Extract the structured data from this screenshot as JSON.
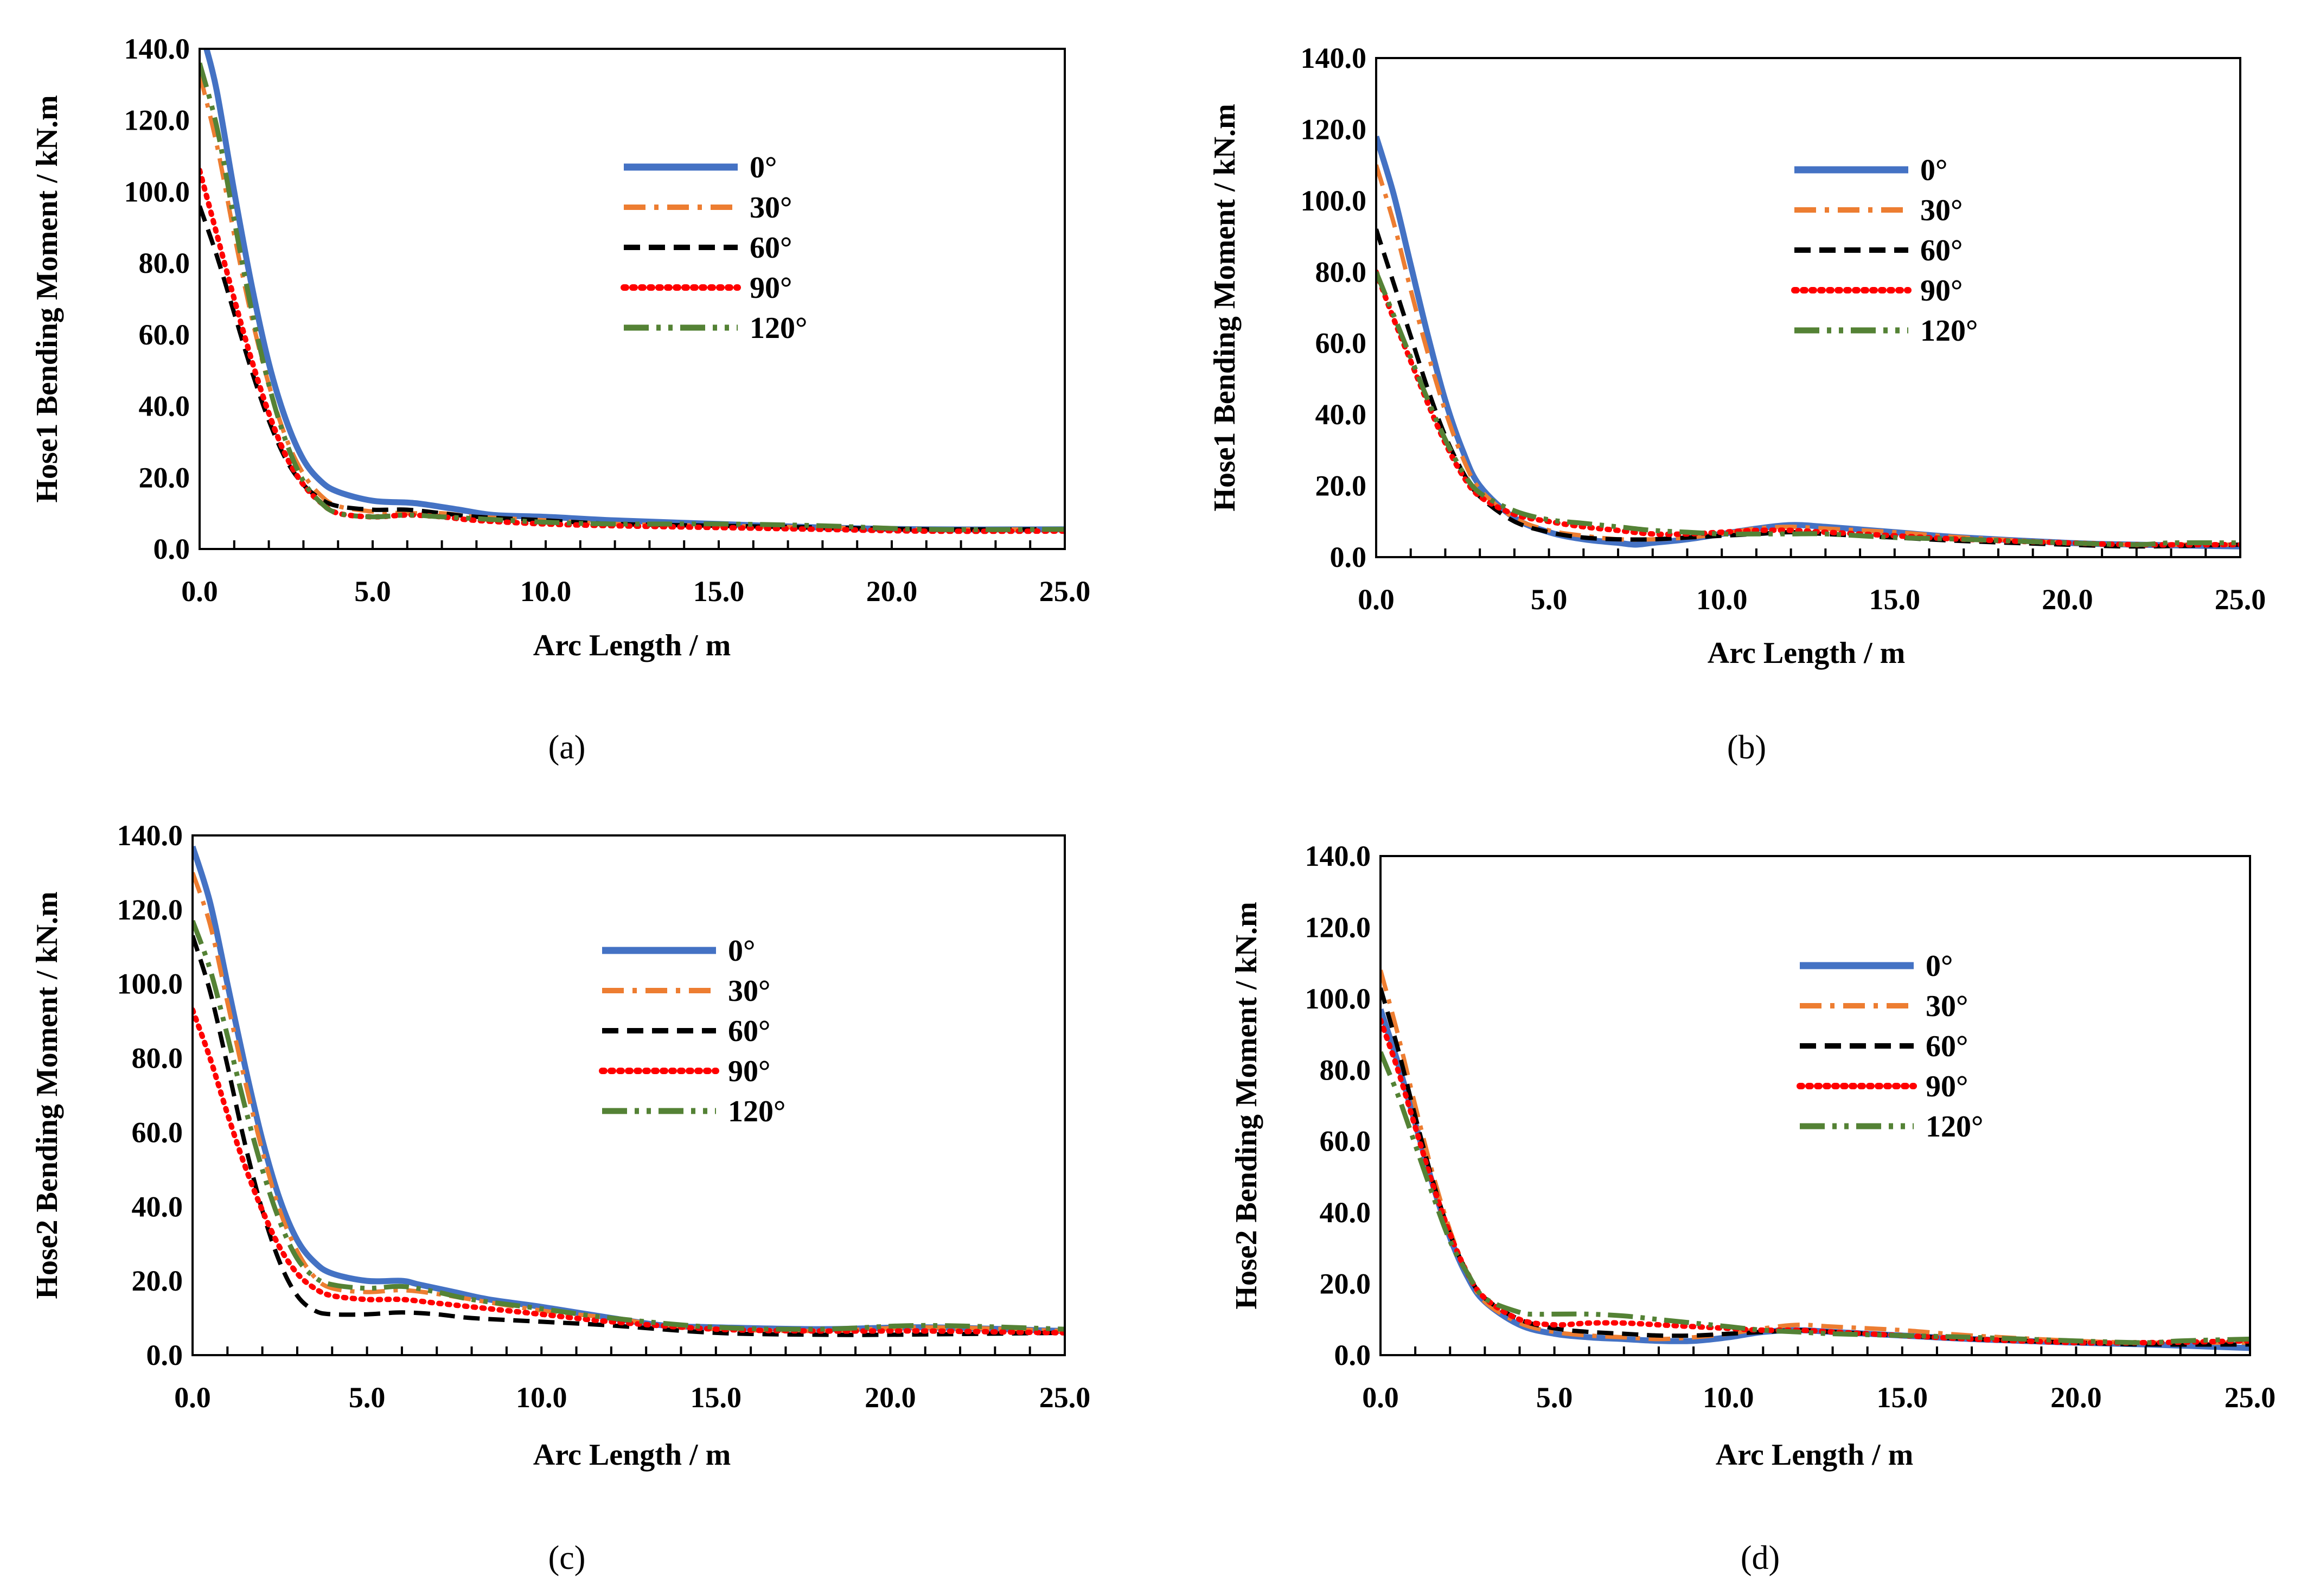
{
  "chart_data": [
    {
      "type": "line",
      "panel_label": "(a)",
      "xlabel": "Arc Length / m",
      "ylabel": "Hose1 Bending Moment / kN.m",
      "xlim": [
        0,
        25
      ],
      "ylim": [
        0,
        140
      ],
      "x_ticks": [
        "0.0",
        "5.0",
        "10.0",
        "15.0",
        "20.0",
        "25.0"
      ],
      "y_ticks": [
        "0.0",
        "20.0",
        "40.0",
        "60.0",
        "80.0",
        "100.0",
        "120.0",
        "140.0"
      ],
      "grid": false,
      "legend_position": "top-right",
      "series": [
        {
          "name": "0°",
          "color": "#4472C4",
          "style": "solid",
          "x": [
            0.2,
            0.5,
            1,
            1.5,
            2,
            2.5,
            3,
            3.5,
            4,
            5,
            6,
            6.5,
            7.5,
            8.5,
            10,
            12,
            15,
            18,
            21,
            25
          ],
          "y": [
            140,
            128,
            100,
            74,
            52,
            36,
            25,
            19,
            16,
            13.5,
            13,
            12.5,
            11,
            9.5,
            9,
            8,
            7,
            6,
            5.5,
            5.5
          ]
        },
        {
          "name": "30°",
          "color": "#ED7D31",
          "style": "dashdot",
          "x": [
            0,
            0.5,
            1,
            1.5,
            2,
            2.5,
            3,
            3.5,
            4,
            5,
            6,
            7,
            8,
            10,
            12,
            15,
            18,
            21,
            25
          ],
          "y": [
            133,
            113,
            88,
            65,
            46,
            31,
            21,
            15,
            12,
            10.5,
            10,
            10,
            9,
            8,
            7,
            6.5,
            6,
            5.5,
            5.5
          ]
        },
        {
          "name": "60°",
          "color": "#000000",
          "style": "dashed",
          "x": [
            0,
            0.5,
            1,
            1.5,
            2,
            2.5,
            3,
            3.5,
            4,
            5,
            6,
            7,
            8,
            10,
            12,
            15,
            18,
            21,
            25
          ],
          "y": [
            96,
            82,
            66,
            50,
            36,
            25,
            18,
            14,
            12,
            11,
            11,
            10,
            9,
            8,
            7,
            6.5,
            6,
            5.5,
            5.5
          ]
        },
        {
          "name": "90°",
          "color": "#FF0000",
          "style": "dotted",
          "x": [
            0,
            0.5,
            1,
            1.5,
            2,
            2.5,
            3,
            3.5,
            4,
            5,
            6,
            7,
            8,
            10,
            12,
            15,
            18,
            21,
            25
          ],
          "y": [
            106,
            88,
            70,
            53,
            38,
            26,
            18,
            13,
            10,
            9,
            9.5,
            9,
            8,
            7,
            6.5,
            6,
            5.5,
            5,
            5
          ]
        },
        {
          "name": "120°",
          "color": "#548235",
          "style": "dashdotdot",
          "x": [
            0,
            0.5,
            1,
            1.5,
            2,
            2.5,
            3,
            3.5,
            4,
            5,
            6,
            7,
            8,
            10,
            12,
            15,
            18,
            21,
            25
          ],
          "y": [
            136,
            118,
            92,
            67,
            46,
            30,
            19,
            13,
            10,
            9,
            9.5,
            9,
            8.5,
            7.5,
            7,
            7,
            6.5,
            5.5,
            5.5
          ]
        }
      ]
    },
    {
      "type": "line",
      "panel_label": "(b)",
      "xlabel": "Arc Length / m",
      "ylabel": "Hose1 Bending Moment / kN.m",
      "xlim": [
        0,
        25
      ],
      "ylim": [
        0,
        140
      ],
      "x_ticks": [
        "0.0",
        "5.0",
        "10.0",
        "15.0",
        "20.0",
        "25.0"
      ],
      "y_ticks": [
        "0.0",
        "20.0",
        "40.0",
        "60.0",
        "80.0",
        "100.0",
        "120.0",
        "140.0"
      ],
      "grid": false,
      "legend_position": "top-right",
      "series": [
        {
          "name": "0°",
          "color": "#4472C4",
          "style": "solid",
          "x": [
            0,
            0.5,
            1,
            1.5,
            2,
            2.5,
            3,
            4,
            5,
            6,
            7,
            7.5,
            8,
            9,
            10,
            11,
            12,
            13,
            15,
            17,
            20,
            22,
            25
          ],
          "y": [
            118,
            102,
            82,
            62,
            44,
            30,
            20,
            11,
            7,
            5,
            4,
            3.5,
            4,
            5,
            6.5,
            8,
            9,
            8.5,
            7,
            5.5,
            4,
            3.5,
            3
          ]
        },
        {
          "name": "30°",
          "color": "#ED7D31",
          "style": "dashdot",
          "x": [
            0,
            0.5,
            1,
            1.5,
            2,
            2.5,
            3,
            4,
            5,
            6,
            7,
            8,
            9,
            10,
            11,
            12,
            13,
            15,
            17,
            20,
            22,
            25
          ],
          "y": [
            110,
            94,
            75,
            57,
            41,
            28,
            19,
            11,
            7.5,
            6,
            5,
            5,
            5.5,
            6.5,
            8,
            8.5,
            8,
            7,
            5.5,
            4,
            3.5,
            3.5
          ]
        },
        {
          "name": "60°",
          "color": "#000000",
          "style": "dashed",
          "x": [
            0,
            0.5,
            1,
            1.5,
            2,
            2.5,
            3,
            4,
            5,
            6,
            7,
            8,
            9,
            10,
            11,
            12,
            13,
            15,
            17,
            20,
            22,
            25
          ],
          "y": [
            92,
            77,
            62,
            47,
            34,
            24,
            17,
            10,
            7,
            5.5,
            5,
            5,
            5.5,
            6,
            6.5,
            7,
            6.5,
            5.5,
            4.5,
            3.5,
            3,
            3.5
          ]
        },
        {
          "name": "90°",
          "color": "#FF0000",
          "style": "dotted",
          "x": [
            0,
            0.5,
            1,
            1.5,
            2,
            2.5,
            3,
            4,
            5,
            6,
            7,
            8,
            9,
            10,
            11,
            12,
            13,
            15,
            17,
            20,
            22,
            25
          ],
          "y": [
            80,
            67,
            55,
            43,
            32,
            23,
            17,
            12,
            10,
            8.5,
            7.5,
            6.5,
            6.5,
            7,
            7.5,
            7.5,
            7,
            6,
            5,
            4,
            3.5,
            3.5
          ]
        },
        {
          "name": "120°",
          "color": "#548235",
          "style": "dashdotdot",
          "x": [
            0,
            0.5,
            1,
            1.5,
            2,
            2.5,
            3,
            4,
            5,
            6,
            7,
            8,
            9,
            10,
            11,
            12,
            13,
            15,
            17,
            20,
            22,
            23,
            25
          ],
          "y": [
            80,
            68,
            56,
            44,
            33,
            24,
            18,
            13,
            10.5,
            9.5,
            8.5,
            7.5,
            7,
            6.5,
            6.5,
            6.5,
            6.5,
            5.5,
            5,
            4,
            3.5,
            4,
            4
          ]
        }
      ]
    },
    {
      "type": "line",
      "panel_label": "(c)",
      "xlabel": "Arc Length / m",
      "ylabel": "Hose2 Bending Moment / kN.m",
      "xlim": [
        0,
        25
      ],
      "ylim": [
        0,
        140
      ],
      "x_ticks": [
        "0.0",
        "5.0",
        "10.0",
        "15.0",
        "20.0",
        "25.0"
      ],
      "y_ticks": [
        "0.0",
        "20.0",
        "40.0",
        "60.0",
        "80.0",
        "100.0",
        "120.0",
        "140.0"
      ],
      "grid": false,
      "legend_position": "top-right",
      "series": [
        {
          "name": "0°",
          "color": "#4472C4",
          "style": "solid",
          "x": [
            0,
            0.5,
            1,
            1.5,
            2,
            2.5,
            3,
            3.5,
            4,
            5,
            6,
            6.5,
            7.5,
            8.5,
            10,
            12,
            13.5,
            15,
            18,
            21,
            25
          ],
          "y": [
            137,
            122,
            100,
            78,
            58,
            42,
            31,
            25,
            22,
            20,
            20,
            19,
            17,
            15,
            13,
            10,
            8,
            7.5,
            7,
            7.5,
            6.5
          ]
        },
        {
          "name": "30°",
          "color": "#ED7D31",
          "style": "dashdot",
          "x": [
            0,
            0.5,
            1,
            1.5,
            2,
            2.5,
            3,
            3.5,
            4,
            5,
            6,
            7,
            8,
            10,
            12,
            13.5,
            15,
            18,
            21,
            25
          ],
          "y": [
            130,
            116,
            95,
            74,
            55,
            39,
            28,
            21,
            18,
            17,
            17.5,
            16.5,
            15,
            12,
            10,
            8,
            7,
            6.5,
            7.5,
            6.5
          ]
        },
        {
          "name": "60°",
          "color": "#000000",
          "style": "dashed",
          "x": [
            0,
            0.5,
            1,
            1.5,
            2,
            2.5,
            3,
            3.5,
            4,
            5,
            6,
            7,
            8,
            10,
            12,
            15,
            18,
            20,
            25
          ],
          "y": [
            113,
            98,
            78,
            57,
            39,
            25,
            16,
            12,
            11,
            11,
            11.5,
            11,
            10,
            9,
            8,
            6,
            5.5,
            5.5,
            6
          ]
        },
        {
          "name": "90°",
          "color": "#FF0000",
          "style": "dotted",
          "x": [
            0,
            0.5,
            1,
            1.5,
            2,
            2.5,
            3,
            3.5,
            4,
            5,
            6,
            7,
            8,
            10,
            12,
            15,
            18,
            21,
            25
          ],
          "y": [
            93,
            80,
            65,
            51,
            39,
            29,
            22,
            18,
            16,
            15,
            15,
            14,
            13,
            11,
            9,
            7,
            6.5,
            6.5,
            6
          ]
        },
        {
          "name": "120°",
          "color": "#548235",
          "style": "dashdotdot",
          "x": [
            0,
            0.5,
            1,
            1.5,
            2,
            2.5,
            3,
            3.5,
            4,
            5,
            6,
            7,
            8,
            10,
            12,
            15,
            18,
            21,
            25
          ],
          "y": [
            117,
            104,
            86,
            67,
            50,
            36,
            26,
            21,
            19,
            18,
            18.5,
            17,
            15,
            12.5,
            10,
            7.5,
            7,
            8,
            7
          ]
        }
      ]
    },
    {
      "type": "line",
      "panel_label": "(d)",
      "xlabel": "Arc Length / m",
      "ylabel": "Hose2 Bending Moment / kN.m",
      "xlim": [
        0,
        25
      ],
      "ylim": [
        0,
        140
      ],
      "x_ticks": [
        "0.0",
        "5.0",
        "10.0",
        "15.0",
        "20.0",
        "25.0"
      ],
      "y_ticks": [
        "0.0",
        "20.0",
        "40.0",
        "60.0",
        "80.0",
        "100.0",
        "120.0",
        "140.0"
      ],
      "grid": false,
      "legend_position": "top-right",
      "series": [
        {
          "name": "0°",
          "color": "#4472C4",
          "style": "solid",
          "x": [
            0,
            0.5,
            1,
            1.5,
            2,
            2.5,
            3,
            4,
            5,
            6,
            7,
            8,
            9,
            10,
            11,
            12,
            13,
            15,
            17,
            20,
            22,
            25
          ],
          "y": [
            97,
            82,
            65,
            48,
            33,
            22,
            15,
            8.5,
            6,
            5,
            4.5,
            4,
            4,
            5,
            6.5,
            7,
            6.5,
            5.5,
            4.5,
            3.5,
            3,
            2
          ]
        },
        {
          "name": "30°",
          "color": "#ED7D31",
          "style": "dashdot",
          "x": [
            0,
            0.5,
            1,
            1.5,
            2,
            2.5,
            3,
            4,
            5,
            6,
            7,
            8,
            9,
            10,
            11,
            12,
            13,
            15,
            17,
            20,
            22,
            25
          ],
          "y": [
            108,
            90,
            70,
            51,
            35,
            23,
            15,
            9,
            6.5,
            5.5,
            5,
            4.5,
            5,
            6,
            7.5,
            8.5,
            8,
            7,
            5.5,
            4,
            3.5,
            3.5
          ]
        },
        {
          "name": "60°",
          "color": "#000000",
          "style": "dashed",
          "x": [
            0,
            0.5,
            1,
            1.5,
            2,
            2.5,
            3,
            4,
            5,
            6,
            7,
            8,
            9,
            10,
            11,
            12,
            13,
            15,
            17,
            20,
            22,
            25
          ],
          "y": [
            103,
            86,
            67,
            49,
            34,
            23,
            16,
            10,
            7.5,
            6.5,
            6,
            5.5,
            5.5,
            6,
            6.5,
            7,
            6.5,
            5.5,
            4.5,
            3.5,
            3,
            3
          ]
        },
        {
          "name": "90°",
          "color": "#FF0000",
          "style": "dotted",
          "x": [
            0,
            0.5,
            1,
            1.5,
            2,
            2.5,
            3,
            4,
            5,
            6,
            7,
            8,
            9,
            10,
            11,
            12,
            13,
            15,
            17,
            20,
            22,
            25
          ],
          "y": [
            94,
            80,
            64,
            48,
            34,
            23,
            16,
            10,
            8.5,
            9,
            9,
            8.5,
            8,
            7.5,
            7,
            7,
            6.5,
            5.5,
            4.5,
            3.5,
            3.5,
            4
          ]
        },
        {
          "name": "120°",
          "color": "#548235",
          "style": "dashdotdot",
          "x": [
            0,
            0.5,
            1,
            1.5,
            2,
            2.5,
            3,
            4,
            4.5,
            5,
            6,
            7,
            8,
            9,
            10,
            11,
            12,
            13,
            15,
            17,
            20,
            22,
            23,
            25
          ],
          "y": [
            85,
            73,
            59,
            45,
            32,
            23,
            16,
            12,
            11.5,
            11.5,
            11.5,
            11,
            10,
            9,
            8,
            7,
            6.5,
            6,
            5.5,
            5,
            4,
            3.5,
            4,
            4.5
          ]
        }
      ]
    }
  ]
}
